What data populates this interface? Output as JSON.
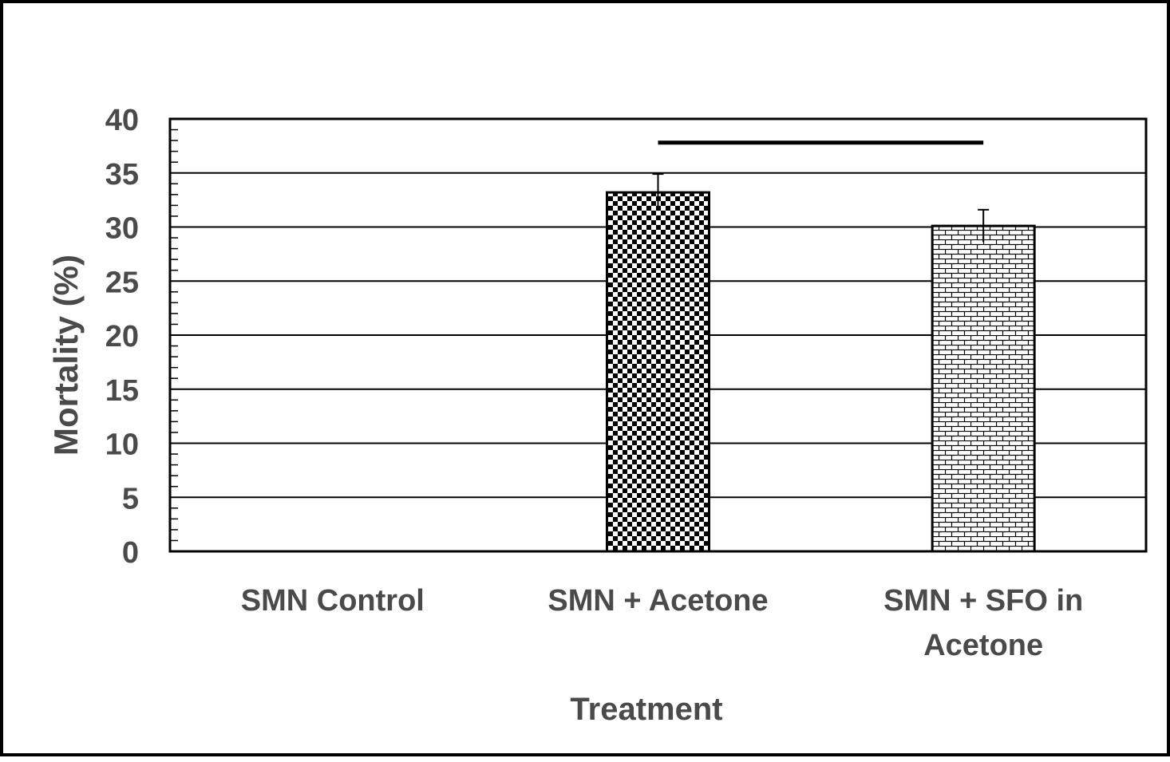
{
  "chart_data": {
    "type": "bar",
    "title": "",
    "xlabel": "Treatment",
    "ylabel": "Mortality  (%)",
    "ylim": [
      0,
      40
    ],
    "yticks": [
      0,
      5,
      10,
      15,
      20,
      25,
      30,
      35,
      40
    ],
    "grid": true,
    "legend": "none",
    "categories": [
      "SMN Control",
      "SMN + Acetone",
      "SMN + SFO in Acetone"
    ],
    "category_lines": [
      [
        "SMN Control"
      ],
      [
        "SMN + Acetone"
      ],
      [
        "SMN + SFO in",
        "Acetone"
      ]
    ],
    "values": [
      0,
      33.2,
      30.1
    ],
    "errors": [
      0,
      1.7,
      1.5
    ],
    "patterns": [
      "none",
      "checkerboard",
      "brick"
    ],
    "significance_bar": {
      "from_category": 1,
      "to_category": 2,
      "y": 37.8
    }
  },
  "colors": {
    "axis": "#000000",
    "text": "#4a4a4a",
    "grid": "#000000",
    "fill": "#ffffff"
  }
}
